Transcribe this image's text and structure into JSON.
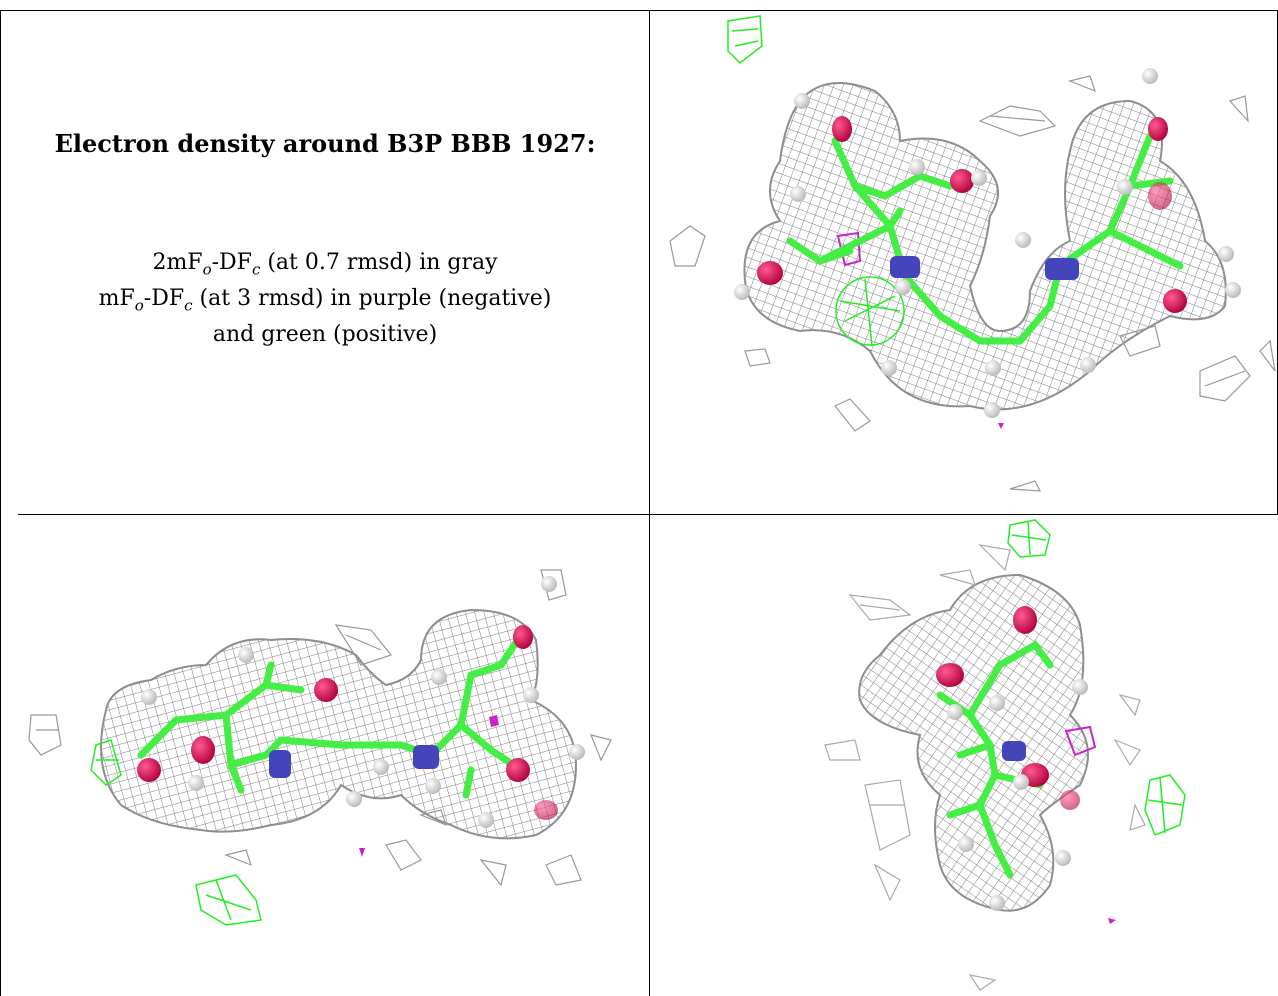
{
  "caption": {
    "title": "Electron density around B3P BBB 1927:",
    "line1_prefix": "2mF",
    "line1_sub_o": "o",
    "line1_mid": "-DF",
    "line1_sub_c": "c",
    "line1_suffix": " (at 0.7 rmsd) in gray",
    "line2_prefix": "mF",
    "line2_sub_o": "o",
    "line2_mid": "-DF",
    "line2_sub_c": "c",
    "line2_suffix": " (at 3 rmsd) in purple (negative)",
    "line3": "and green (positive)"
  },
  "panels": [
    {
      "name": "view-top-right"
    },
    {
      "name": "view-bottom-left"
    },
    {
      "name": "view-bottom-right"
    }
  ],
  "colors": {
    "mesh_gray": "#8a8a8a",
    "positive_green": "#22ee22",
    "negative_purple": "#cc22cc",
    "carbon": "#44ee44",
    "oxygen": "#dd1155",
    "nitrogen": "#4444bb",
    "hydrogen": "#e8e8e8",
    "border": "#000000"
  }
}
